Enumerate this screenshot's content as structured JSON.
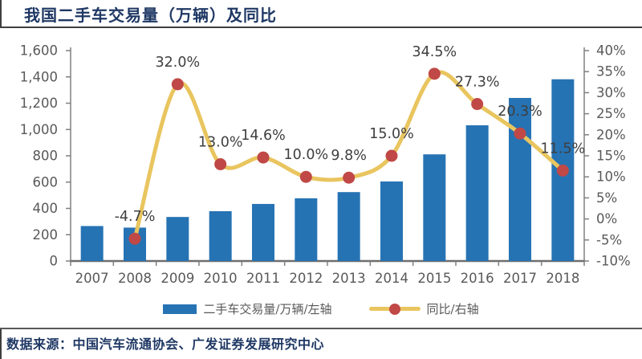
{
  "header": {
    "title": "我国二手车交易量（万辆）及同比"
  },
  "chart_data": {
    "type": "bar",
    "subtype": "bar+line combo, dual axis",
    "title": "我国二手车交易量（万辆）及同比",
    "categories": [
      "2007",
      "2008",
      "2009",
      "2010",
      "2011",
      "2012",
      "2013",
      "2014",
      "2015",
      "2016",
      "2017",
      "2018"
    ],
    "series": [
      {
        "name": "二手车交易量/万辆/左轴",
        "type": "bar",
        "axis": "left",
        "values": [
          266,
          254,
          335,
          379,
          434,
          477,
          524,
          605,
          811,
          1032,
          1240,
          1382
        ]
      },
      {
        "name": "同比/右轴",
        "type": "line",
        "axis": "right",
        "values": [
          null,
          -4.7,
          32.0,
          13.0,
          14.6,
          10.0,
          9.8,
          15.0,
          34.5,
          27.3,
          20.3,
          11.5
        ],
        "point_labels": [
          "",
          "-4.7%",
          "32.0%",
          "13.0%",
          "14.6%",
          "10.0%",
          "9.8%",
          "15.0%",
          "34.5%",
          "27.3%",
          "20.3%",
          "11.5%"
        ]
      }
    ],
    "left_axis": {
      "min": 0,
      "max": 1600,
      "step": 200,
      "tick_labels": [
        "0",
        "200",
        "400",
        "600",
        "800",
        "1,000",
        "1,200",
        "1,400",
        "1,600"
      ]
    },
    "right_axis": {
      "min": -10,
      "max": 40,
      "step": 5,
      "tick_labels": [
        "-10%",
        "-5%",
        "0%",
        "5%",
        "10%",
        "15%",
        "20%",
        "25%",
        "30%",
        "35%",
        "40%"
      ]
    },
    "grid": false,
    "legend_position": "bottom",
    "colors": {
      "bar": "#2673B4",
      "line": "#E9C55F",
      "marker": "#C04846",
      "axis": "#808080",
      "tick_text": "#595959",
      "data_label": "#3F3F3F",
      "title": "#1F3864",
      "rule": "#3F3F3F"
    }
  },
  "legend": {
    "items": [
      {
        "label": "二手车交易量/万辆/左轴",
        "swatch": "bar"
      },
      {
        "label": "同比/右轴",
        "swatch": "line"
      }
    ]
  },
  "footer": {
    "source": "数据来源：中国汽车流通协会、广发证券发展研究中心"
  }
}
